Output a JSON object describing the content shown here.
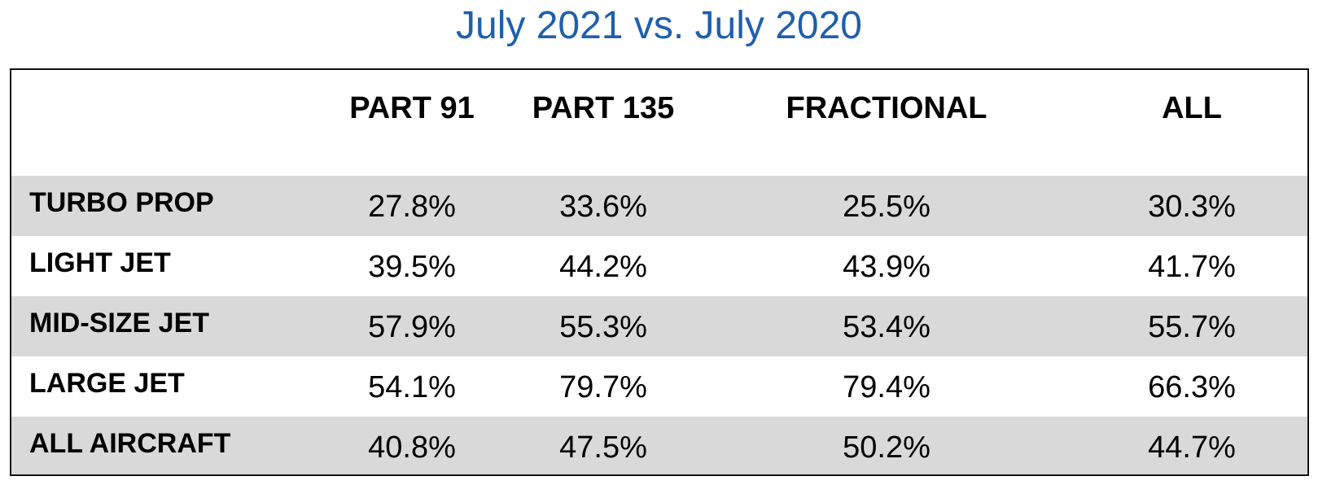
{
  "title": "July 2021 vs. July 2020",
  "chart_data": {
    "type": "table",
    "title": "July 2021 vs. July 2020",
    "columns": [
      "PART 91",
      "PART 135",
      "FRACTIONAL",
      "ALL"
    ],
    "rows": [
      {
        "label": "TURBO PROP",
        "values": [
          "27.8%",
          "33.6%",
          "25.5%",
          "30.3%"
        ]
      },
      {
        "label": "LIGHT JET",
        "values": [
          "39.5%",
          "44.2%",
          "43.9%",
          "41.7%"
        ]
      },
      {
        "label": "MID-SIZE JET",
        "values": [
          "57.9%",
          "55.3%",
          "53.4%",
          "55.7%"
        ]
      },
      {
        "label": "LARGE JET",
        "values": [
          "54.1%",
          "79.7%",
          "79.4%",
          "66.3%"
        ]
      },
      {
        "label": "ALL AIRCRAFT",
        "values": [
          "40.8%",
          "47.5%",
          "50.2%",
          "44.7%"
        ]
      }
    ],
    "shaded_rows": [
      0,
      2,
      4
    ],
    "colors": {
      "title": "#1f5fad",
      "shade": "#d9d9d9",
      "text": "#000000",
      "border": "#111111"
    }
  }
}
